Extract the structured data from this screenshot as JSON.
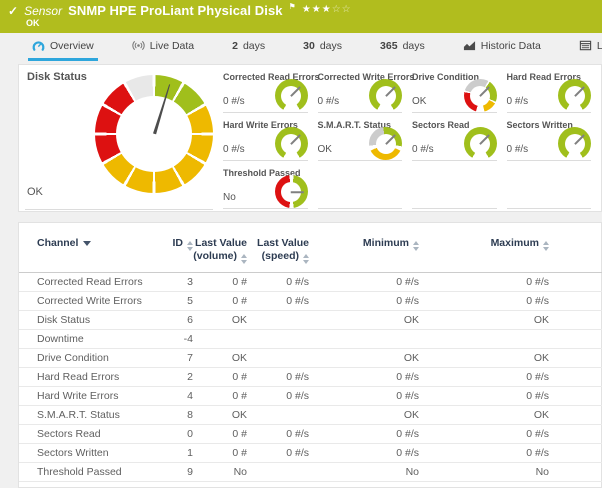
{
  "colors": {
    "topbar_green": "#b1bd1e",
    "accent_blue": "#2ea6dc",
    "gauge_green": "#a0bf1c",
    "gauge_yellow": "#eeb900",
    "gauge_red": "#dd1111",
    "gauge_gray": "#cccccc",
    "table_header_text": "#2d3c52"
  },
  "header": {
    "check": "✓",
    "kind_label": "Sensor",
    "title": "SNMP HPE ProLiant Physical Disk",
    "flag": "⚑",
    "stars_filled": "★★★",
    "stars_empty": "☆☆",
    "status": "OK"
  },
  "tabs": [
    {
      "label": "Overview",
      "icon": "gauge-icon",
      "active": true
    },
    {
      "label": "Live Data",
      "icon": "broadcast-icon",
      "active": false
    },
    {
      "prefix": "2",
      "label": "days",
      "active": false
    },
    {
      "prefix": "30",
      "label": "days",
      "active": false
    },
    {
      "prefix": "365",
      "label": "days",
      "active": false
    },
    {
      "label": "Historic Data",
      "icon": "chart-icon",
      "active": false
    },
    {
      "label": "Log",
      "icon": "log-icon",
      "active": false
    }
  ],
  "overview": {
    "main_gauge": {
      "label": "Disk Status",
      "value": "OK",
      "needle_deg": 17
    },
    "gauges": [
      {
        "label": "Corrected Read Errors",
        "value": "0 #/s",
        "type": "green",
        "needle_deg": 45
      },
      {
        "label": "Corrected Write Errors",
        "value": "0 #/s",
        "type": "green",
        "needle_deg": 45
      },
      {
        "label": "Drive Condition",
        "value": "OK",
        "type": "status-drive",
        "needle_deg": 45
      },
      {
        "label": "Hard Read Errors",
        "value": "0 #/s",
        "type": "green",
        "needle_deg": 45
      },
      {
        "label": "Hard Write Errors",
        "value": "0 #/s",
        "type": "green",
        "needle_deg": 45
      },
      {
        "label": "S.M.A.R.T. Status",
        "value": "OK",
        "type": "status-smart",
        "needle_deg": 45
      },
      {
        "label": "Sectors Read",
        "value": "0 #/s",
        "type": "green",
        "needle_deg": 45
      },
      {
        "label": "Sectors Written",
        "value": "0 #/s",
        "type": "green",
        "needle_deg": 45
      },
      {
        "label": "Threshold Passed",
        "value": "No",
        "type": "threshold",
        "needle_deg": 90
      }
    ]
  },
  "table": {
    "columns": [
      {
        "label": "Channel",
        "sort": "desc"
      },
      {
        "label": "ID",
        "sort": "both"
      },
      {
        "label": "Last Value",
        "sublabel": "(volume)",
        "sort": "both"
      },
      {
        "label": "Last Value",
        "sublabel": "(speed)",
        "sort": "both"
      },
      {
        "label": "Minimum",
        "sort": "both"
      },
      {
        "label": "Maximum",
        "sort": "both"
      }
    ],
    "rows": [
      {
        "channel": "Corrected Read Errors",
        "id": "3",
        "last_volume": "0 #",
        "last_speed": "0 #/s",
        "minimum": "0 #/s",
        "maximum": "0 #/s"
      },
      {
        "channel": "Corrected Write Errors",
        "id": "5",
        "last_volume": "0 #",
        "last_speed": "0 #/s",
        "minimum": "0 #/s",
        "maximum": "0 #/s"
      },
      {
        "channel": "Disk Status",
        "id": "6",
        "last_volume": "OK",
        "last_speed": "",
        "minimum": "OK",
        "maximum": "OK"
      },
      {
        "channel": "Downtime",
        "id": "-4",
        "last_volume": "",
        "last_speed": "",
        "minimum": "",
        "maximum": ""
      },
      {
        "channel": "Drive Condition",
        "id": "7",
        "last_volume": "OK",
        "last_speed": "",
        "minimum": "OK",
        "maximum": "OK"
      },
      {
        "channel": "Hard Read Errors",
        "id": "2",
        "last_volume": "0 #",
        "last_speed": "0 #/s",
        "minimum": "0 #/s",
        "maximum": "0 #/s"
      },
      {
        "channel": "Hard Write Errors",
        "id": "4",
        "last_volume": "0 #",
        "last_speed": "0 #/s",
        "minimum": "0 #/s",
        "maximum": "0 #/s"
      },
      {
        "channel": "S.M.A.R.T. Status",
        "id": "8",
        "last_volume": "OK",
        "last_speed": "",
        "minimum": "OK",
        "maximum": "OK"
      },
      {
        "channel": "Sectors Read",
        "id": "0",
        "last_volume": "0 #",
        "last_speed": "0 #/s",
        "minimum": "0 #/s",
        "maximum": "0 #/s"
      },
      {
        "channel": "Sectors Written",
        "id": "1",
        "last_volume": "0 #",
        "last_speed": "0 #/s",
        "minimum": "0 #/s",
        "maximum": "0 #/s"
      },
      {
        "channel": "Threshold Passed",
        "id": "9",
        "last_volume": "No",
        "last_speed": "",
        "minimum": "No",
        "maximum": "No"
      }
    ]
  }
}
